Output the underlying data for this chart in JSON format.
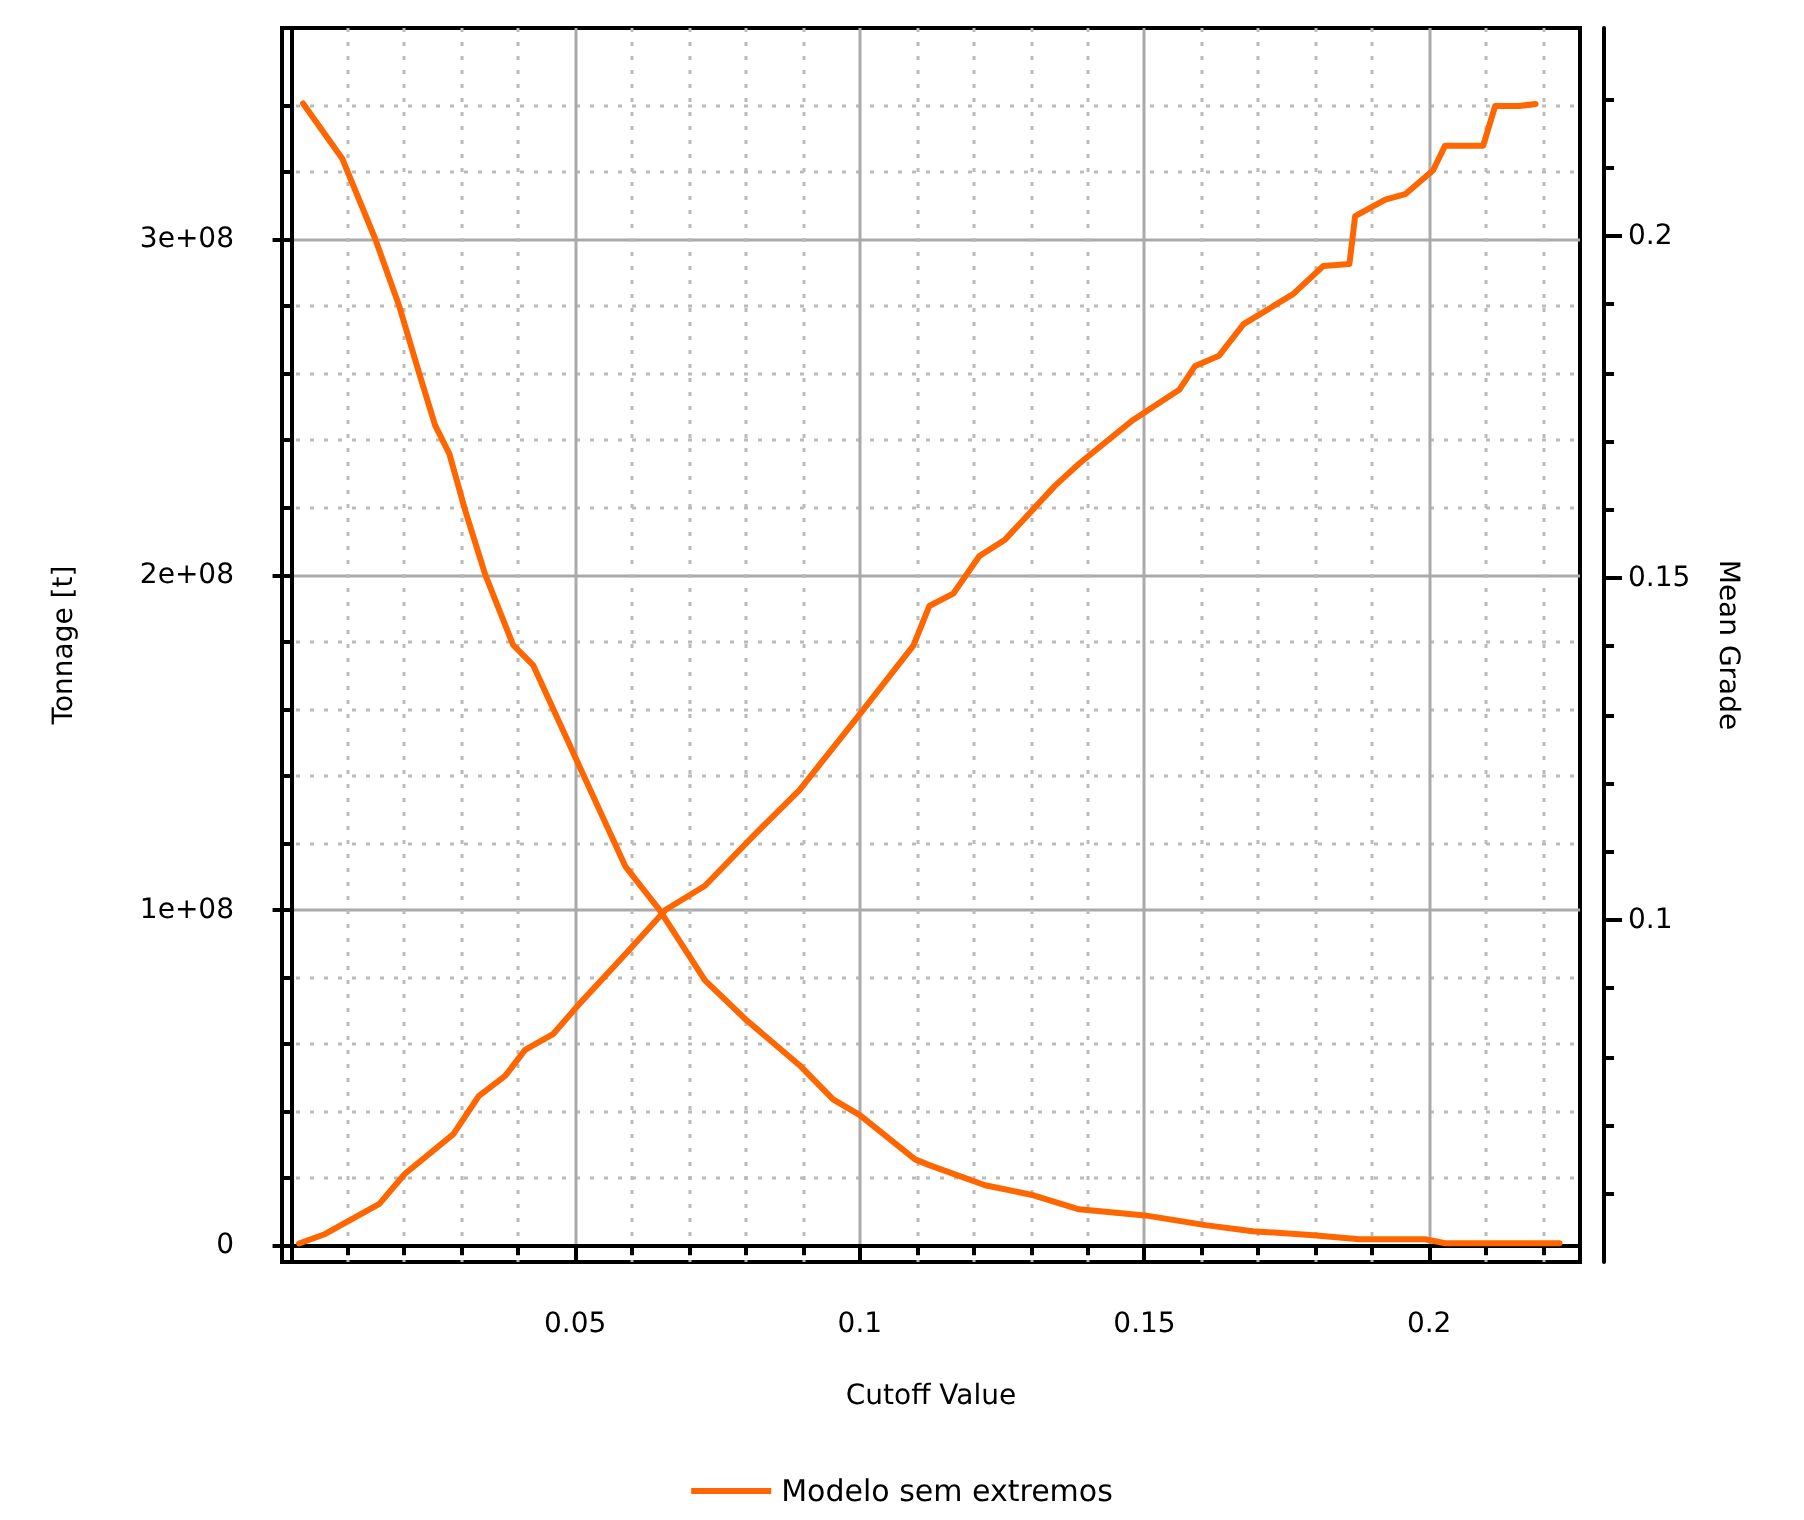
{
  "chart_data": {
    "type": "line",
    "xlabel": "Cutoff Value",
    "ylabel": "Tonnage [t]",
    "y2label": "Mean Grade",
    "xlim": [
      -0.0015,
      0.2265
    ],
    "xticks": [
      {
        "value": 0.01,
        "label": null
      },
      {
        "value": 0.02,
        "label": null
      },
      {
        "value": 0.03,
        "label": null
      },
      {
        "value": 0.04,
        "label": null
      },
      0.05,
      {
        "value": 0.06,
        "label": null
      },
      {
        "value": 0.07,
        "label": null
      },
      {
        "value": 0.08,
        "label": null
      },
      {
        "value": 0.09,
        "label": null
      },
      0.1,
      {
        "value": 0.11,
        "label": null
      },
      {
        "value": 0.12,
        "label": null
      },
      {
        "value": 0.13,
        "label": null
      },
      {
        "value": 0.14,
        "label": null
      },
      0.15,
      {
        "value": 0.16,
        "label": null
      },
      {
        "value": 0.17,
        "label": null
      },
      {
        "value": 0.18,
        "label": null
      },
      {
        "value": 0.19,
        "label": null
      },
      0.2,
      {
        "value": 0.21,
        "label": null
      },
      {
        "value": 0.22,
        "label": null
      }
    ],
    "ylim": [
      -5000000,
      363000000
    ],
    "yticks": [
      0,
      {
        "value": 20000000,
        "label": null
      },
      {
        "value": 40000000,
        "label": null
      },
      {
        "value": 60000000,
        "label": null
      },
      {
        "value": 80000000,
        "label": null
      },
      {
        "value": 100000000,
        "label": "1e+08"
      },
      {
        "value": 120000000,
        "label": null
      },
      {
        "value": 140000000,
        "label": null
      },
      {
        "value": 160000000,
        "label": null
      },
      {
        "value": 180000000,
        "label": null
      },
      {
        "value": 200000000,
        "label": "2e+08"
      },
      {
        "value": 220000000,
        "label": null
      },
      {
        "value": 240000000,
        "label": null
      },
      {
        "value": 260000000,
        "label": null
      },
      {
        "value": 280000000,
        "label": null
      },
      {
        "value": 300000000,
        "label": "3e+08"
      },
      {
        "value": 320000000,
        "label": null
      },
      {
        "value": 340000000,
        "label": null
      }
    ],
    "y2lim": [
      0.05,
      0.2304
    ],
    "y2ticks": [
      {
        "value": 0.06,
        "label": null
      },
      {
        "value": 0.07,
        "label": null
      },
      {
        "value": 0.08,
        "label": null
      },
      {
        "value": 0.09,
        "label": null
      },
      0.1,
      {
        "value": 0.11,
        "label": null
      },
      {
        "value": 0.12,
        "label": null
      },
      {
        "value": 0.13,
        "label": null
      },
      {
        "value": 0.14,
        "label": null
      },
      0.15,
      {
        "value": 0.16,
        "label": null
      },
      {
        "value": 0.17,
        "label": null
      },
      {
        "value": 0.18,
        "label": null
      },
      {
        "value": 0.19,
        "label": null
      },
      0.2,
      {
        "value": 0.21,
        "label": null
      },
      {
        "value": 0.22,
        "label": null
      }
    ],
    "grid": true,
    "legend": "bottom",
    "series": [
      {
        "name": "Modelo sem extremos",
        "color": "#ff6600",
        "x": [
          0.0022,
          0.0091,
          0.0149,
          0.0191,
          0.0226,
          0.0254,
          0.0279,
          0.0307,
          0.0342,
          0.0391,
          0.0426,
          0.0507,
          0.0588,
          0.0648,
          0.0728,
          0.0799,
          0.0894,
          0.0953,
          0.1,
          0.1097,
          0.1122,
          0.122,
          0.1305,
          0.1385,
          0.1501,
          0.1607,
          0.169,
          0.1797,
          0.1877,
          0.1993,
          0.2028,
          0.2229
        ],
        "values": [
          340500000,
          324000000,
          300000000,
          280000000,
          260000000,
          244500000,
          236000000,
          219000000,
          200000000,
          179000000,
          173000000,
          143000000,
          113000000,
          100000000,
          79000000,
          67400000,
          53700000,
          43500000,
          38800000,
          25600000,
          23900000,
          17900000,
          14900000,
          10700000,
          8900000,
          6000000,
          4200000,
          3000000,
          1800000,
          1800000,
          600000,
          600000
        ]
      },
      {
        "color": "#ff6600",
        "axis": "y2",
        "x": [
          0.0015,
          0.0061,
          0.0156,
          0.0201,
          0.0286,
          0.0331,
          0.0377,
          0.0412,
          0.0461,
          0.0507,
          0.0588,
          0.0659,
          0.0728,
          0.0813,
          0.0894,
          0.1,
          0.1094,
          0.1122,
          0.1164,
          0.121,
          0.1255,
          0.1343,
          0.1385,
          0.148,
          0.1561,
          0.1589,
          0.1631,
          0.1674,
          0.1761,
          0.1814,
          0.186,
          0.187,
          0.1923,
          0.1958,
          0.2007,
          0.2028,
          0.2095,
          0.2116,
          0.2158,
          0.2187
        ],
        "values": [
          0.0527,
          0.0541,
          0.0585,
          0.0629,
          0.0687,
          0.0743,
          0.0772,
          0.081,
          0.0833,
          0.0877,
          0.095,
          0.1015,
          0.105,
          0.1123,
          0.119,
          0.1301,
          0.1401,
          0.1459,
          0.1477,
          0.1532,
          0.1556,
          0.1635,
          0.1667,
          0.1731,
          0.1775,
          0.181,
          0.1825,
          0.1871,
          0.1915,
          0.1956,
          0.1959,
          0.2029,
          0.2053,
          0.2061,
          0.2096,
          0.2132,
          0.2132,
          0.219,
          0.219,
          0.2193
        ]
      }
    ]
  }
}
